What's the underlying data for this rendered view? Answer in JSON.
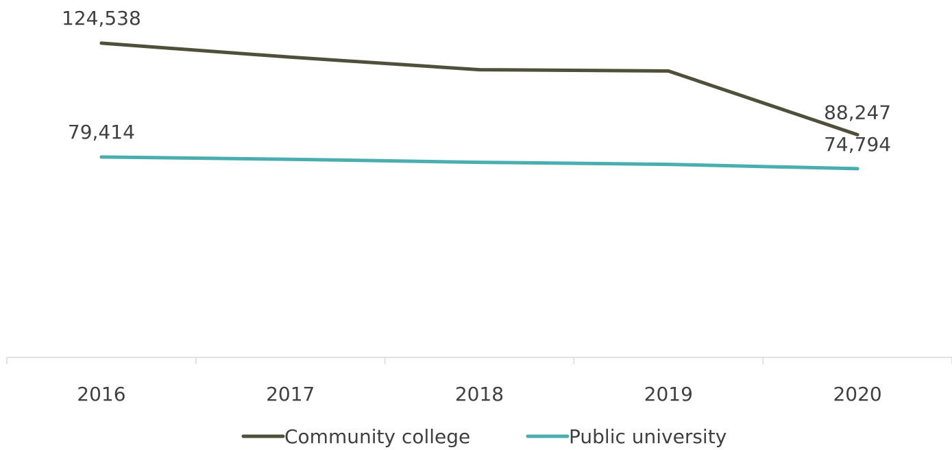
{
  "chart_data": {
    "type": "line",
    "categories": [
      "2016",
      "2017",
      "2018",
      "2019",
      "2020"
    ],
    "series": [
      {
        "name": "Community college",
        "color": "#4f4f3a",
        "values": [
          124538,
          119000,
          114000,
          113500,
          88247
        ],
        "labels": {
          "0": "124,538",
          "4": "88,247"
        }
      },
      {
        "name": "Public university",
        "color": "#4aadb0",
        "values": [
          79414,
          78500,
          77300,
          76500,
          74794
        ],
        "labels": {
          "0": "79,414",
          "4": "74,794"
        }
      }
    ],
    "ylim": [
      0,
      140000
    ],
    "grid": false,
    "legend_position": "bottom"
  }
}
